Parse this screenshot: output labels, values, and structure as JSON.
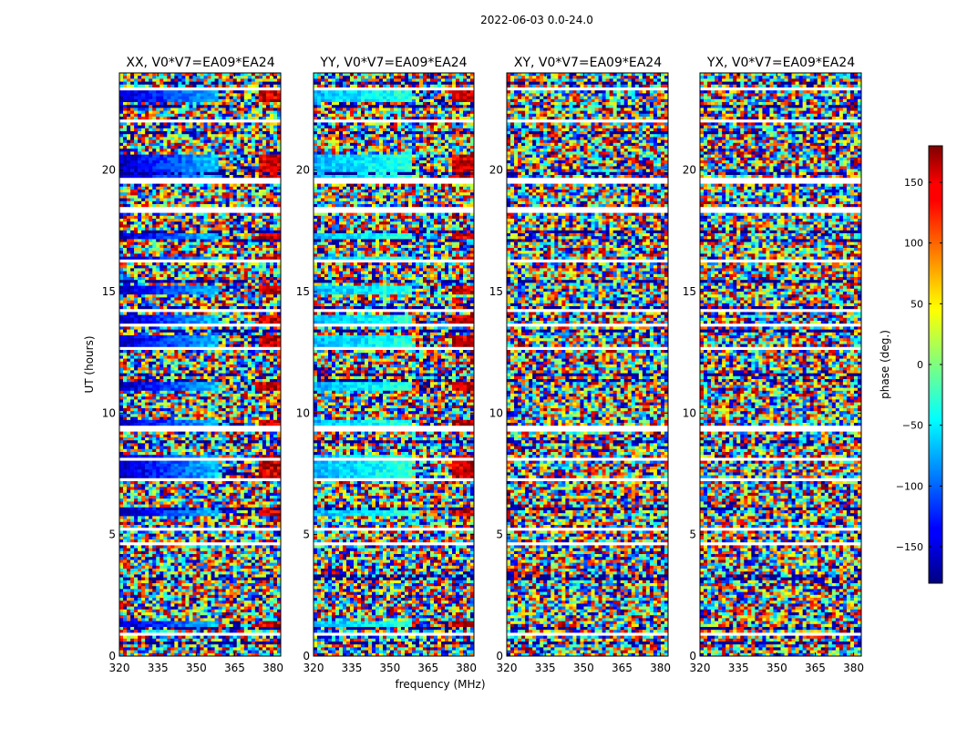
{
  "chart_data": {
    "type": "heatmap",
    "title": "2022-06-03 0.0-24.0",
    "xlabel": "frequency (MHz)",
    "ylabel": "UT (hours)",
    "xlim": [
      320,
      383
    ],
    "ylim": [
      0,
      24
    ],
    "xticks": [
      "320",
      "335",
      "350",
      "365",
      "380"
    ],
    "xtick_values": [
      320,
      335,
      350,
      365,
      380
    ],
    "yticks": [
      "0",
      "5",
      "10",
      "15",
      "20"
    ],
    "ytick_values": [
      0,
      5,
      10,
      15,
      20
    ],
    "panels": [
      {
        "title": "XX, V0*V7=EA09*EA24",
        "mode": "coherent",
        "color_bias": -0.55
      },
      {
        "title": "YY, V0*V7=EA09*EA24",
        "mode": "coherent",
        "color_bias": -0.25
      },
      {
        "title": "XY, V0*V7=EA09*EA24",
        "mode": "noise",
        "color_bias": 0
      },
      {
        "title": "YX, V0*V7=EA09*EA24",
        "mode": "noise",
        "color_bias": 0
      }
    ],
    "gap_hours": [
      [
        0.85,
        1.0
      ],
      [
        2.35,
        2.45
      ],
      [
        3.7,
        3.78
      ],
      [
        4.55,
        4.7
      ],
      [
        5.2,
        5.28
      ],
      [
        6.2,
        6.3
      ],
      [
        7.15,
        7.3
      ],
      [
        8.1,
        8.18
      ],
      [
        9.3,
        9.45
      ],
      [
        11.5,
        11.58
      ],
      [
        12.6,
        12.75
      ],
      [
        13.55,
        13.65
      ],
      [
        14.15,
        14.3
      ],
      [
        16.15,
        16.3
      ],
      [
        17.0,
        17.08
      ],
      [
        18.3,
        18.5
      ],
      [
        19.5,
        19.65
      ],
      [
        22.0,
        22.12
      ],
      [
        23.3,
        23.45
      ]
    ],
    "coherent_bands_hours": [
      [
        1.15,
        1.45
      ],
      [
        5.7,
        6.1
      ],
      [
        7.35,
        8.3
      ],
      [
        9.45,
        9.7
      ],
      [
        10.9,
        11.3
      ],
      [
        12.75,
        13.15
      ],
      [
        13.65,
        14.1
      ],
      [
        14.9,
        15.2
      ],
      [
        16.3,
        16.5
      ],
      [
        17.2,
        17.45
      ],
      [
        19.65,
        20.6
      ],
      [
        22.75,
        23.3
      ]
    ],
    "colorbar": {
      "label": "phase (deg.)",
      "range": [
        -180,
        180
      ],
      "ticks": [
        "150",
        "100",
        "50",
        "0",
        "−50",
        "−100",
        "−150"
      ],
      "tick_values": [
        150,
        100,
        50,
        0,
        -50,
        -100,
        -150
      ],
      "colormap": "jet"
    }
  }
}
